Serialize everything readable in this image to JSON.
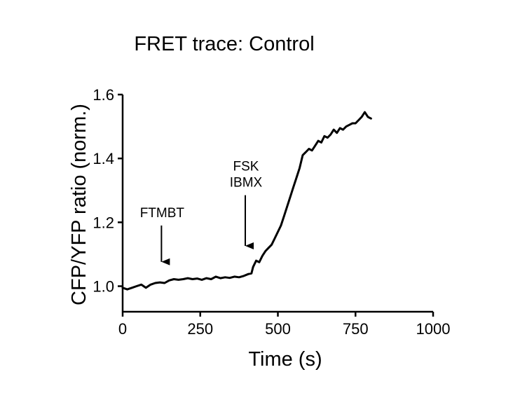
{
  "chart_data": {
    "type": "line",
    "title": "FRET trace: Control",
    "xlabel": "Time (s)",
    "ylabel": "CFP/YFP ratio (norm.)",
    "xlim": [
      0,
      1000
    ],
    "ylim": [
      0.92,
      1.6
    ],
    "xticks": [
      0,
      250,
      500,
      750,
      1000
    ],
    "xtick_labels": [
      "0",
      "250",
      "500",
      "750",
      "1000"
    ],
    "yticks": [
      1.0,
      1.2,
      1.4,
      1.6
    ],
    "ytick_labels": [
      "1.0",
      "1.2",
      "1.4",
      "1.6"
    ],
    "grid": false,
    "legend": "none",
    "series": [
      {
        "color": "#000000",
        "x": [
          0,
          15,
          30,
          45,
          60,
          75,
          90,
          105,
          120,
          135,
          150,
          165,
          180,
          195,
          210,
          225,
          240,
          255,
          270,
          285,
          300,
          315,
          330,
          345,
          360,
          375,
          390,
          405,
          415,
          420,
          430,
          440,
          450,
          460,
          470,
          480,
          490,
          500,
          510,
          520,
          530,
          540,
          550,
          560,
          570,
          580,
          590,
          600,
          610,
          620,
          630,
          640,
          650,
          660,
          670,
          680,
          690,
          700,
          710,
          720,
          730,
          740,
          750,
          760,
          770,
          780,
          790,
          800
        ],
        "y": [
          0.995,
          0.99,
          0.995,
          1.0,
          1.005,
          0.995,
          1.005,
          1.01,
          1.012,
          1.01,
          1.018,
          1.022,
          1.02,
          1.022,
          1.025,
          1.022,
          1.024,
          1.02,
          1.025,
          1.022,
          1.03,
          1.025,
          1.028,
          1.026,
          1.03,
          1.028,
          1.032,
          1.038,
          1.04,
          1.06,
          1.08,
          1.075,
          1.095,
          1.11,
          1.12,
          1.13,
          1.15,
          1.17,
          1.19,
          1.22,
          1.25,
          1.28,
          1.31,
          1.34,
          1.37,
          1.41,
          1.42,
          1.43,
          1.425,
          1.44,
          1.455,
          1.45,
          1.47,
          1.465,
          1.475,
          1.49,
          1.48,
          1.495,
          1.49,
          1.5,
          1.505,
          1.51,
          1.51,
          1.52,
          1.53,
          1.545,
          1.53,
          1.525
        ]
      }
    ],
    "annotations": [
      {
        "lines": [
          "FTMBT"
        ],
        "x": 125,
        "arrow_top": 1.19,
        "arrow_bottom": 1.05
      },
      {
        "lines": [
          "FSK",
          "IBMX"
        ],
        "x": 395,
        "arrow_top": 1.285,
        "arrow_bottom": 1.1
      }
    ]
  }
}
